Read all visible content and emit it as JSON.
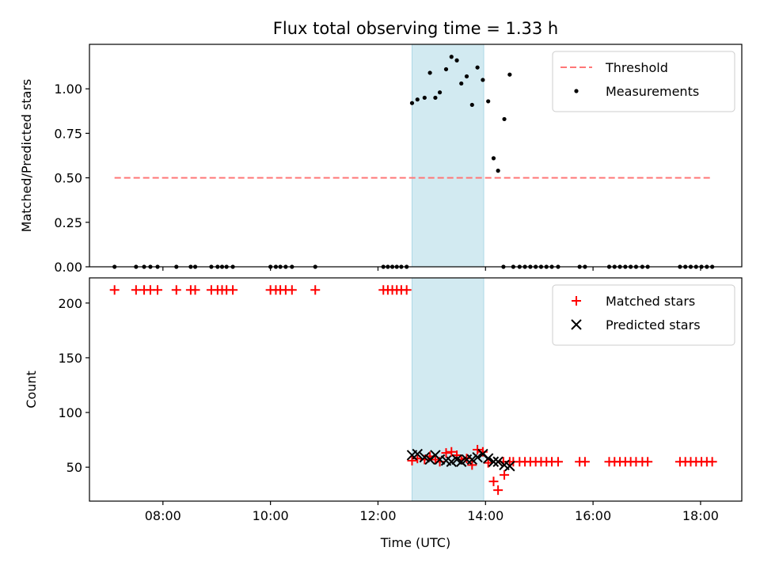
{
  "chart_data": [
    {
      "type": "scatter",
      "title": "Flux total observing time = 1.33 h",
      "xlabel": "",
      "ylabel": "Matched/Predicted stars",
      "xlim": [
        "06:38",
        "18:46"
      ],
      "ylim": [
        0,
        1.25
      ],
      "xticks": [
        "08:00",
        "10:00",
        "12:00",
        "14:00",
        "16:00",
        "18:00"
      ],
      "yticks": [
        0.0,
        0.25,
        0.5,
        0.75,
        1.0
      ],
      "ytick_labels": [
        "0.00",
        "0.25",
        "0.50",
        "0.75",
        "1.00"
      ],
      "grid": false,
      "legend_position": "top-right",
      "highlight_span": [
        "12:38",
        "13:58"
      ],
      "highlight_color": "#add8e6",
      "threshold": {
        "name": "Threshold",
        "value": 0.5,
        "x_range": [
          "07:06",
          "18:13"
        ],
        "color": "#ff7777",
        "style": "dashed"
      },
      "series": [
        {
          "name": "Measurements",
          "marker": "dot",
          "color": "#000000",
          "points": [
            [
              "07:06",
              0
            ],
            [
              "07:30",
              0
            ],
            [
              "07:39",
              0
            ],
            [
              "07:46",
              0
            ],
            [
              "07:54",
              0
            ],
            [
              "08:15",
              0
            ],
            [
              "08:31",
              0
            ],
            [
              "08:36",
              0
            ],
            [
              "08:54",
              0
            ],
            [
              "09:01",
              0
            ],
            [
              "09:06",
              0
            ],
            [
              "09:11",
              0
            ],
            [
              "09:18",
              0
            ],
            [
              "10:00",
              0
            ],
            [
              "10:06",
              0
            ],
            [
              "10:11",
              0
            ],
            [
              "10:17",
              0
            ],
            [
              "10:24",
              0
            ],
            [
              "10:50",
              0
            ],
            [
              "12:06",
              0
            ],
            [
              "12:11",
              0
            ],
            [
              "12:16",
              0
            ],
            [
              "12:21",
              0
            ],
            [
              "12:26",
              0
            ],
            [
              "12:32",
              0
            ],
            [
              "12:38",
              0.92
            ],
            [
              "12:44",
              0.94
            ],
            [
              "12:52",
              0.95
            ],
            [
              "12:58",
              1.09
            ],
            [
              "13:04",
              0.95
            ],
            [
              "13:09",
              0.98
            ],
            [
              "13:16",
              1.11
            ],
            [
              "13:22",
              1.18
            ],
            [
              "13:28",
              1.16
            ],
            [
              "13:33",
              1.03
            ],
            [
              "13:39",
              1.07
            ],
            [
              "13:45",
              0.91
            ],
            [
              "13:51",
              1.12
            ],
            [
              "13:57",
              1.05
            ],
            [
              "14:03",
              0.93
            ],
            [
              "14:09",
              0.61
            ],
            [
              "14:14",
              0.54
            ],
            [
              "14:21",
              0.83
            ],
            [
              "14:27",
              1.08
            ],
            [
              "14:20",
              0
            ],
            [
              "14:31",
              0
            ],
            [
              "14:38",
              0
            ],
            [
              "14:44",
              0
            ],
            [
              "14:50",
              0
            ],
            [
              "14:56",
              0
            ],
            [
              "15:02",
              0
            ],
            [
              "15:08",
              0
            ],
            [
              "15:14",
              0
            ],
            [
              "15:21",
              0
            ],
            [
              "15:45",
              0
            ],
            [
              "15:51",
              0
            ],
            [
              "16:18",
              0
            ],
            [
              "16:24",
              0
            ],
            [
              "16:30",
              0
            ],
            [
              "16:36",
              0
            ],
            [
              "16:42",
              0
            ],
            [
              "16:48",
              0
            ],
            [
              "16:55",
              0
            ],
            [
              "17:01",
              0
            ],
            [
              "17:37",
              0
            ],
            [
              "17:43",
              0
            ],
            [
              "17:49",
              0
            ],
            [
              "17:55",
              0
            ],
            [
              "18:01",
              0
            ],
            [
              "18:07",
              0
            ],
            [
              "18:13",
              0
            ]
          ]
        }
      ]
    },
    {
      "type": "scatter",
      "title": "",
      "xlabel": "Time (UTC)",
      "ylabel": "Count",
      "xlim": [
        "06:38",
        "18:46"
      ],
      "ylim": [
        19,
        223
      ],
      "xticks": [
        "08:00",
        "10:00",
        "12:00",
        "14:00",
        "16:00",
        "18:00"
      ],
      "yticks": [
        50,
        100,
        150,
        200
      ],
      "ytick_labels": [
        "50",
        "100",
        "150",
        "200"
      ],
      "grid": false,
      "legend_position": "top-right",
      "highlight_span": [
        "12:38",
        "13:58"
      ],
      "highlight_color": "#add8e6",
      "series": [
        {
          "name": "Matched stars",
          "marker": "plus",
          "color": "#ff0000",
          "points": [
            [
              "07:06",
              212
            ],
            [
              "07:30",
              212
            ],
            [
              "07:39",
              212
            ],
            [
              "07:46",
              212
            ],
            [
              "07:54",
              212
            ],
            [
              "08:15",
              212
            ],
            [
              "08:31",
              212
            ],
            [
              "08:36",
              212
            ],
            [
              "08:54",
              212
            ],
            [
              "09:01",
              212
            ],
            [
              "09:06",
              212
            ],
            [
              "09:11",
              212
            ],
            [
              "09:18",
              212
            ],
            [
              "10:00",
              212
            ],
            [
              "10:06",
              212
            ],
            [
              "10:11",
              212
            ],
            [
              "10:17",
              212
            ],
            [
              "10:24",
              212
            ],
            [
              "10:50",
              212
            ],
            [
              "12:06",
              212
            ],
            [
              "12:11",
              212
            ],
            [
              "12:16",
              212
            ],
            [
              "12:21",
              212
            ],
            [
              "12:26",
              212
            ],
            [
              "12:32",
              212
            ],
            [
              "12:38",
              56
            ],
            [
              "12:44",
              58
            ],
            [
              "12:52",
              57
            ],
            [
              "12:58",
              60
            ],
            [
              "13:04",
              57
            ],
            [
              "13:09",
              55
            ],
            [
              "13:16",
              63
            ],
            [
              "13:22",
              64
            ],
            [
              "13:28",
              61
            ],
            [
              "13:33",
              57
            ],
            [
              "13:39",
              58
            ],
            [
              "13:45",
              52
            ],
            [
              "13:51",
              66
            ],
            [
              "13:57",
              64
            ],
            [
              "14:03",
              54
            ],
            [
              "14:09",
              37
            ],
            [
              "14:14",
              29
            ],
            [
              "14:21",
              43
            ],
            [
              "14:27",
              55
            ],
            [
              "14:20",
              55
            ],
            [
              "14:31",
              55
            ],
            [
              "14:38",
              55
            ],
            [
              "14:44",
              55
            ],
            [
              "14:50",
              55
            ],
            [
              "14:56",
              55
            ],
            [
              "15:02",
              55
            ],
            [
              "15:08",
              55
            ],
            [
              "15:14",
              55
            ],
            [
              "15:21",
              55
            ],
            [
              "15:45",
              55
            ],
            [
              "15:51",
              55
            ],
            [
              "16:18",
              55
            ],
            [
              "16:24",
              55
            ],
            [
              "16:30",
              55
            ],
            [
              "16:36",
              55
            ],
            [
              "16:42",
              55
            ],
            [
              "16:48",
              55
            ],
            [
              "16:55",
              55
            ],
            [
              "17:01",
              55
            ],
            [
              "17:37",
              55
            ],
            [
              "17:43",
              55
            ],
            [
              "17:49",
              55
            ],
            [
              "17:55",
              55
            ],
            [
              "18:01",
              55
            ],
            [
              "18:07",
              55
            ],
            [
              "18:13",
              55
            ]
          ]
        },
        {
          "name": "Predicted stars",
          "marker": "x",
          "color": "#000000",
          "points": [
            [
              "12:38",
              61
            ],
            [
              "12:44",
              62
            ],
            [
              "12:52",
              59
            ],
            [
              "12:58",
              57
            ],
            [
              "13:04",
              61
            ],
            [
              "13:09",
              57
            ],
            [
              "13:16",
              56
            ],
            [
              "13:22",
              55
            ],
            [
              "13:28",
              57
            ],
            [
              "13:33",
              55
            ],
            [
              "13:39",
              57
            ],
            [
              "13:45",
              57
            ],
            [
              "13:51",
              59
            ],
            [
              "13:57",
              62
            ],
            [
              "14:03",
              58
            ],
            [
              "14:09",
              55
            ],
            [
              "14:14",
              55
            ],
            [
              "14:21",
              52
            ],
            [
              "14:27",
              51
            ]
          ]
        }
      ]
    }
  ]
}
